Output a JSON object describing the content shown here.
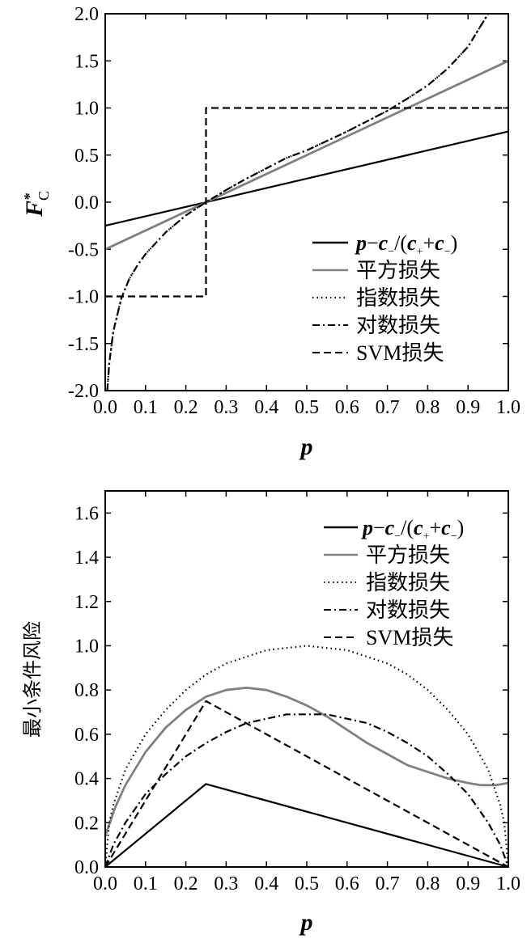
{
  "legend": {
    "formula": {
      "p": "p",
      "minus": "−",
      "c1": "c",
      "sub1": "−",
      "mid": "/(",
      "c2": "c",
      "sub2": "+",
      "plus": "+",
      "c3": "c",
      "sub3": "−",
      "close": ")"
    },
    "square": "平方损失",
    "exp": "指数损失",
    "log": "对数损失",
    "svm": "SVM损失"
  },
  "colors": {
    "black": "#000000",
    "gray": "#808080"
  },
  "chart_data": [
    {
      "type": "line",
      "xlabel": "p",
      "ylabel": "F",
      "ylabel_sup": "*",
      "ylabel_sub": "C",
      "xlim": [
        0,
        1
      ],
      "ylim": [
        -2,
        2
      ],
      "xticks": [
        "0.0",
        "0.1",
        "0.2",
        "0.3",
        "0.4",
        "0.5",
        "0.6",
        "0.7",
        "0.8",
        "0.9",
        "1.0"
      ],
      "yticks": [
        "-2.0",
        "-1.5",
        "-1.0",
        "-0.5",
        "0.0",
        "0.5",
        "1.0",
        "1.5",
        "2.0"
      ],
      "ytick_values": [
        -2,
        -1.5,
        -1,
        -0.5,
        0,
        0.5,
        1,
        1.5,
        2
      ],
      "legend_position": "bottom-right",
      "series": [
        {
          "key": "formula",
          "style": "solid",
          "color": "#000000",
          "x": [
            0,
            1
          ],
          "y": [
            -0.25,
            0.75
          ]
        },
        {
          "key": "square",
          "style": "solid",
          "color": "#808080",
          "x": [
            0,
            1
          ],
          "y": [
            -0.5,
            1.5
          ]
        },
        {
          "key": "exp",
          "style": "dotted",
          "color": "#000000",
          "x": [
            0.005,
            0.01,
            0.02,
            0.04,
            0.06,
            0.08,
            0.1,
            0.15,
            0.2,
            0.25,
            0.3,
            0.35,
            0.4,
            0.45,
            0.5,
            0.55,
            0.6,
            0.65,
            0.7,
            0.75,
            0.8,
            0.85,
            0.9,
            0.93,
            0.95
          ],
          "y": [
            -2.0,
            -1.71,
            -1.37,
            -1.02,
            -0.81,
            -0.67,
            -0.55,
            -0.32,
            -0.14,
            0.0,
            0.13,
            0.25,
            0.36,
            0.47,
            0.55,
            0.65,
            0.75,
            0.86,
            0.97,
            1.1,
            1.24,
            1.42,
            1.65,
            1.86,
            2.0
          ]
        },
        {
          "key": "log",
          "style": "dashdot",
          "color": "#000000",
          "x": [
            0.005,
            0.01,
            0.02,
            0.04,
            0.06,
            0.08,
            0.1,
            0.15,
            0.2,
            0.25,
            0.3,
            0.35,
            0.4,
            0.45,
            0.5,
            0.55,
            0.6,
            0.65,
            0.7,
            0.75,
            0.8,
            0.85,
            0.9,
            0.93,
            0.95
          ],
          "y": [
            -2.0,
            -1.71,
            -1.37,
            -1.02,
            -0.81,
            -0.67,
            -0.55,
            -0.32,
            -0.14,
            0.0,
            0.13,
            0.25,
            0.36,
            0.47,
            0.55,
            0.65,
            0.75,
            0.86,
            0.97,
            1.1,
            1.24,
            1.42,
            1.65,
            1.86,
            2.0
          ]
        },
        {
          "key": "svm",
          "style": "dashed",
          "color": "#000000",
          "x": [
            0,
            0.25,
            0.25,
            1
          ],
          "y": [
            -1,
            -1,
            1,
            1
          ]
        }
      ]
    },
    {
      "type": "line",
      "xlabel": "p",
      "ylabel": "最小条件风险",
      "xlim": [
        0,
        1
      ],
      "ylim": [
        0,
        1.7
      ],
      "xticks": [
        "0.0",
        "0.1",
        "0.2",
        "0.3",
        "0.4",
        "0.5",
        "0.6",
        "0.7",
        "0.8",
        "0.9",
        "1.0"
      ],
      "yticks": [
        "0.0",
        "0.2",
        "0.4",
        "0.6",
        "0.8",
        "1.0",
        "1.2",
        "1.4",
        "1.6"
      ],
      "ytick_values": [
        0,
        0.2,
        0.4,
        0.6,
        0.8,
        1.0,
        1.2,
        1.4,
        1.6
      ],
      "legend_position": "top-right",
      "series": [
        {
          "key": "formula",
          "style": "solid",
          "color": "#000000",
          "x": [
            0,
            0.25,
            1
          ],
          "y": [
            0,
            0.375,
            0
          ]
        },
        {
          "key": "square",
          "style": "solid",
          "color": "#808080",
          "x": [
            0,
            0.025,
            0.05,
            0.1,
            0.15,
            0.2,
            0.25,
            0.3,
            0.35,
            0.4,
            0.45,
            0.5,
            0.55,
            0.6,
            0.65,
            0.7,
            0.75,
            0.8,
            0.85,
            0.9,
            0.93,
            0.95,
            0.97,
            1.0
          ],
          "y": [
            0.14,
            0.27,
            0.37,
            0.52,
            0.63,
            0.71,
            0.77,
            0.8,
            0.81,
            0.8,
            0.77,
            0.73,
            0.68,
            0.62,
            0.56,
            0.51,
            0.46,
            0.43,
            0.4,
            0.38,
            0.37,
            0.37,
            0.37,
            0.38
          ]
        },
        {
          "key": "exp",
          "style": "dotted",
          "color": "#000000",
          "x": [
            0,
            0.01,
            0.02,
            0.05,
            0.1,
            0.15,
            0.2,
            0.25,
            0.3,
            0.35,
            0.4,
            0.45,
            0.5,
            0.55,
            0.6,
            0.65,
            0.7,
            0.75,
            0.8,
            0.85,
            0.9,
            0.95,
            0.98,
            0.99,
            1.0
          ],
          "y": [
            0,
            0.2,
            0.28,
            0.44,
            0.6,
            0.71,
            0.8,
            0.87,
            0.92,
            0.95,
            0.98,
            0.99,
            1.0,
            0.99,
            0.98,
            0.95,
            0.92,
            0.87,
            0.8,
            0.71,
            0.6,
            0.44,
            0.28,
            0.2,
            0
          ]
        },
        {
          "key": "log",
          "style": "dashdot",
          "color": "#000000",
          "x": [
            0,
            0.02,
            0.05,
            0.1,
            0.15,
            0.2,
            0.25,
            0.3,
            0.35,
            0.4,
            0.45,
            0.5,
            0.55,
            0.6,
            0.65,
            0.7,
            0.75,
            0.8,
            0.85,
            0.9,
            0.95,
            0.98,
            1.0
          ],
          "y": [
            0,
            0.1,
            0.2,
            0.33,
            0.42,
            0.5,
            0.56,
            0.61,
            0.65,
            0.67,
            0.69,
            0.69,
            0.69,
            0.67,
            0.65,
            0.61,
            0.56,
            0.5,
            0.42,
            0.33,
            0.2,
            0.1,
            0
          ]
        },
        {
          "key": "svm",
          "style": "dashed",
          "color": "#000000",
          "x": [
            0,
            0.25,
            1
          ],
          "y": [
            0,
            0.75,
            0
          ]
        }
      ]
    }
  ]
}
